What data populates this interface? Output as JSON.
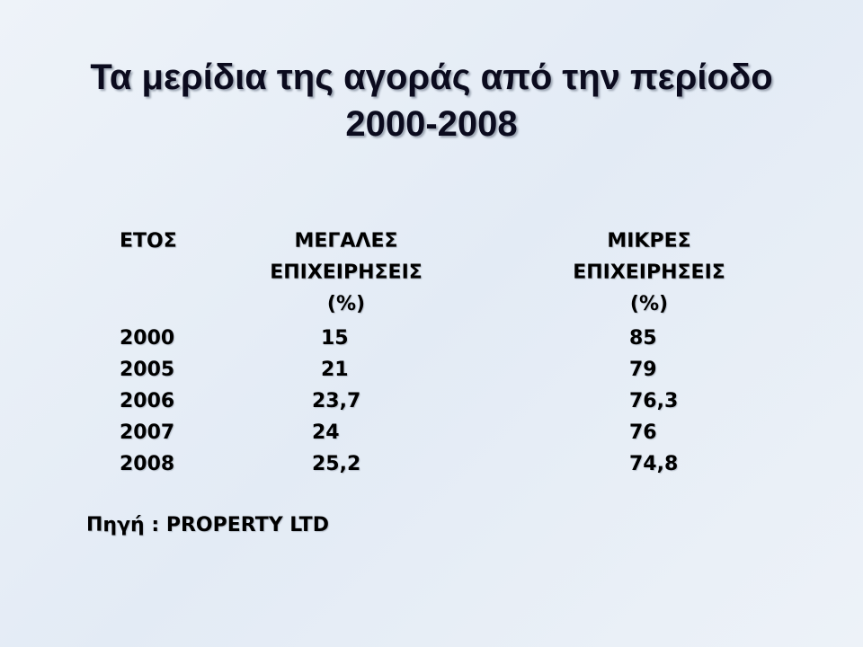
{
  "header": {
    "title": [
      "Τα μερίδια της αγοράς από την περίοδο",
      "2000-2008"
    ]
  },
  "table": {
    "columns": [
      [
        "ΕΤΟΣ"
      ],
      [
        "ΜΕΓΑΛΕΣ",
        "ΕΠΙΧΕΙΡΗΣΕΙΣ",
        "(%)"
      ],
      [
        "ΜΙΚΡΕΣ",
        "ΕΠΙΧΕΙΡΗΣΕΙΣ",
        "(%)"
      ]
    ],
    "rows": [
      [
        "2000",
        "15",
        "85"
      ],
      [
        "2005",
        "21",
        "79"
      ],
      [
        "2006",
        "23,7",
        "76,3"
      ],
      [
        "2007",
        "24",
        "76"
      ],
      [
        "2008",
        "25,2",
        "74,8"
      ]
    ]
  },
  "source": "Πηγή : PROPERTY LTD"
}
